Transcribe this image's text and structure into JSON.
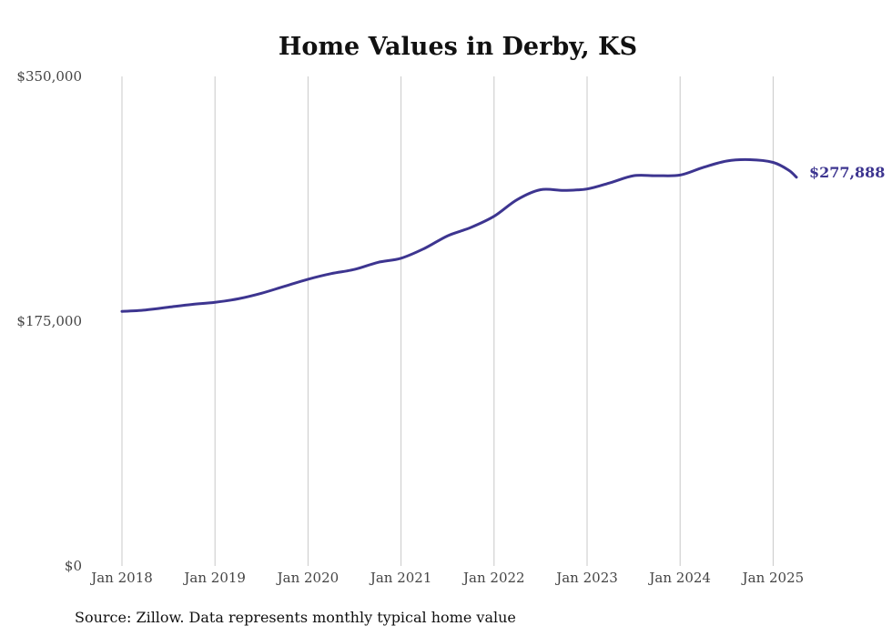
{
  "chart_data": {
    "type": "line",
    "title": "Home Values in Derby, KS",
    "xlabel": "",
    "ylabel": "",
    "x_ticks": [
      "Jan 2018",
      "Jan 2019",
      "Jan 2020",
      "Jan 2021",
      "Jan 2022",
      "Jan 2023",
      "Jan 2024",
      "Jan 2025"
    ],
    "y_ticks": [
      "$0",
      "$175,000",
      "$350,000"
    ],
    "ylim": [
      0,
      350000
    ],
    "grid": "vertical",
    "series": [
      {
        "color": "#3d3590",
        "points": [
          [
            "2018-01",
            182000
          ],
          [
            "2018-04",
            183000
          ],
          [
            "2018-07",
            185000
          ],
          [
            "2018-10",
            187000
          ],
          [
            "2019-01",
            188500
          ],
          [
            "2019-04",
            191000
          ],
          [
            "2019-07",
            195000
          ],
          [
            "2019-10",
            200000
          ],
          [
            "2020-01",
            205000
          ],
          [
            "2020-04",
            209000
          ],
          [
            "2020-07",
            212000
          ],
          [
            "2020-10",
            217000
          ],
          [
            "2021-01",
            220000
          ],
          [
            "2021-04",
            227000
          ],
          [
            "2021-07",
            236000
          ],
          [
            "2021-10",
            242000
          ],
          [
            "2022-01",
            250000
          ],
          [
            "2022-04",
            262000
          ],
          [
            "2022-07",
            269000
          ],
          [
            "2022-10",
            268500
          ],
          [
            "2023-01",
            269500
          ],
          [
            "2023-04",
            274000
          ],
          [
            "2023-07",
            279000
          ],
          [
            "2023-10",
            279000
          ],
          [
            "2024-01",
            279500
          ],
          [
            "2024-04",
            285000
          ],
          [
            "2024-07",
            289500
          ],
          [
            "2024-10",
            290500
          ],
          [
            "2025-01",
            288500
          ],
          [
            "2025-03",
            283000
          ],
          [
            "2025-04",
            277888
          ]
        ]
      }
    ],
    "end_label": "$277,888",
    "source": "Source: Zillow. Data represents monthly typical home value"
  }
}
